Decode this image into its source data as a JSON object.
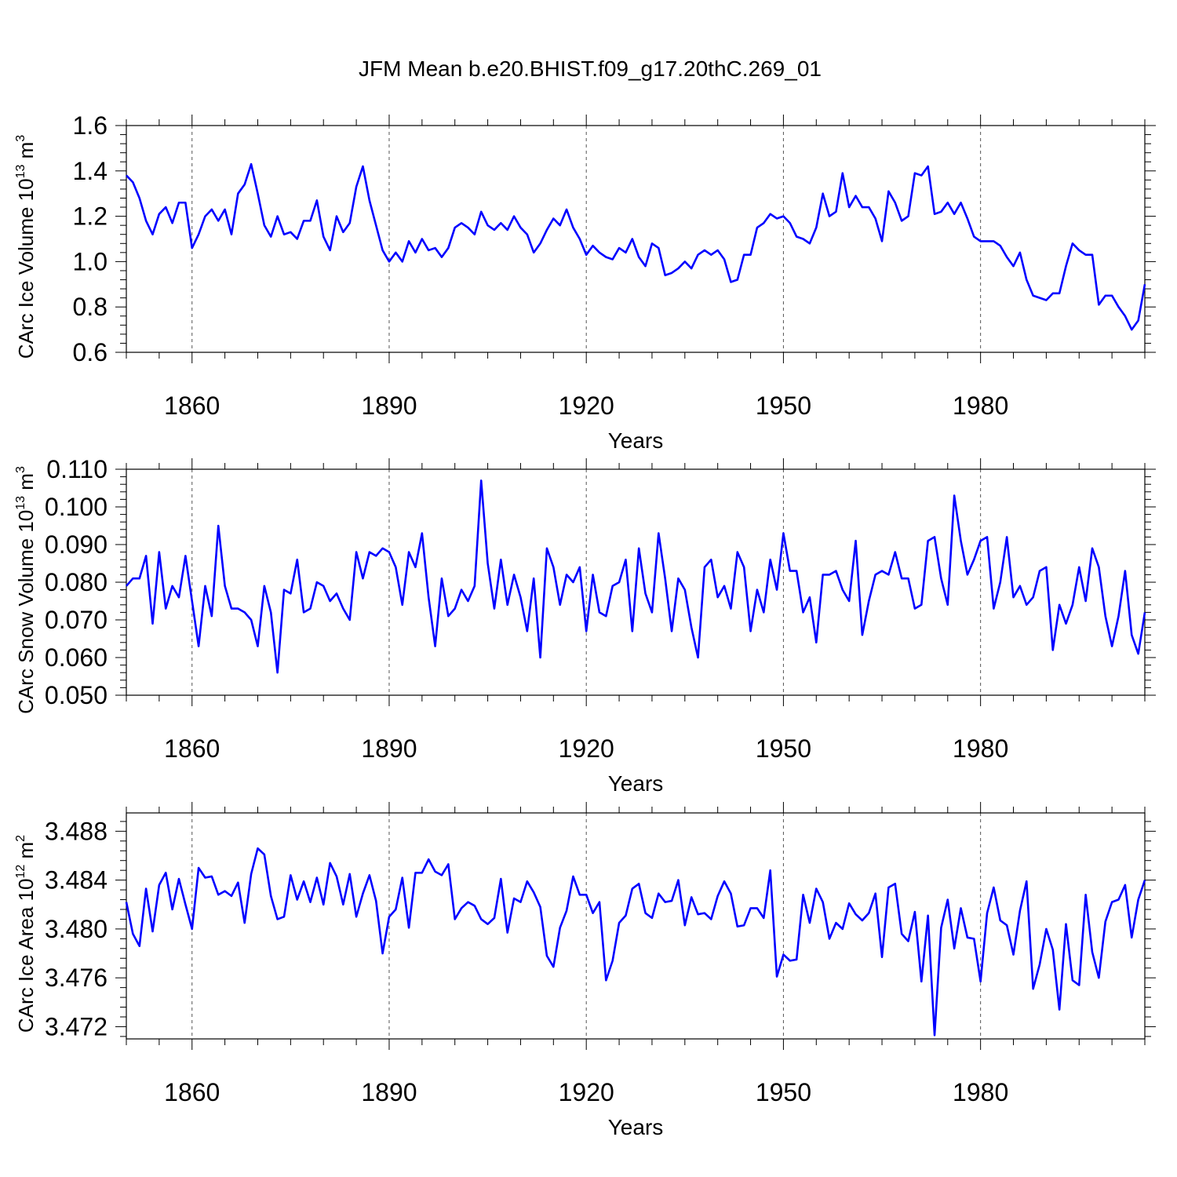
{
  "title": "JFM Mean b.e20.BHIST.f09_g17.20thC.269_01",
  "colors": {
    "line": "#0000ff",
    "axis": "#000000",
    "grid": "#555555"
  },
  "chart_data": [
    {
      "type": "line",
      "ylabel": "CArc Ice Volume 10",
      "ylabel_exp": "13",
      "ylabel_unit": " m",
      "ylabel_unit_exp": "3",
      "xlabel": "Years",
      "xlim": [
        1850,
        2005
      ],
      "ylim": [
        0.6,
        1.6
      ],
      "yticks": [
        0.6,
        0.8,
        1.0,
        1.2,
        1.4,
        1.6
      ],
      "ytick_labels": [
        "0.6",
        "0.8",
        "1.0",
        "1.2",
        "1.4",
        "1.6"
      ],
      "xticks": [
        1860,
        1890,
        1920,
        1950,
        1980
      ],
      "xtick_labels": [
        "1860",
        "1890",
        "1920",
        "1950",
        "1980"
      ],
      "x_start": 1850,
      "values": [
        1.38,
        1.35,
        1.28,
        1.18,
        1.12,
        1.21,
        1.24,
        1.17,
        1.26,
        1.26,
        1.06,
        1.12,
        1.2,
        1.23,
        1.18,
        1.23,
        1.12,
        1.3,
        1.34,
        1.43,
        1.3,
        1.16,
        1.11,
        1.2,
        1.12,
        1.13,
        1.1,
        1.18,
        1.18,
        1.27,
        1.11,
        1.05,
        1.2,
        1.13,
        1.17,
        1.33,
        1.42,
        1.27,
        1.16,
        1.05,
        1.0,
        1.04,
        1.0,
        1.09,
        1.04,
        1.1,
        1.05,
        1.06,
        1.02,
        1.06,
        1.15,
        1.17,
        1.15,
        1.12,
        1.22,
        1.16,
        1.14,
        1.17,
        1.14,
        1.2,
        1.15,
        1.12,
        1.04,
        1.08,
        1.14,
        1.19,
        1.16,
        1.23,
        1.15,
        1.1,
        1.03,
        1.07,
        1.04,
        1.02,
        1.01,
        1.06,
        1.04,
        1.1,
        1.02,
        0.98,
        1.08,
        1.06,
        0.94,
        0.95,
        0.97,
        1.0,
        0.97,
        1.03,
        1.05,
        1.03,
        1.05,
        1.01,
        0.91,
        0.92,
        1.03,
        1.03,
        1.15,
        1.17,
        1.21,
        1.19,
        1.2,
        1.17,
        1.11,
        1.1,
        1.08,
        1.15,
        1.3,
        1.2,
        1.22,
        1.39,
        1.24,
        1.29,
        1.24,
        1.24,
        1.19,
        1.09,
        1.31,
        1.26,
        1.18,
        1.2,
        1.39,
        1.38,
        1.42,
        1.21,
        1.22,
        1.26,
        1.21,
        1.26,
        1.19,
        1.11,
        1.09,
        1.09,
        1.09,
        1.07,
        1.02,
        0.98,
        1.04,
        0.92,
        0.85,
        0.84,
        0.83,
        0.86,
        0.86,
        0.98,
        1.08,
        1.05,
        1.03,
        1.03,
        0.81,
        0.85,
        0.85,
        0.8,
        0.76,
        0.7,
        0.74,
        0.9
      ]
    },
    {
      "type": "line",
      "ylabel": "CArc Snow Volume 10",
      "ylabel_exp": "13",
      "ylabel_unit": " m",
      "ylabel_unit_exp": "3",
      "xlabel": "Years",
      "xlim": [
        1850,
        2005
      ],
      "ylim": [
        0.05,
        0.11
      ],
      "yticks": [
        0.05,
        0.06,
        0.07,
        0.08,
        0.09,
        0.1,
        0.11
      ],
      "ytick_labels": [
        "0.050",
        "0.060",
        "0.070",
        "0.080",
        "0.090",
        "0.100",
        "0.110"
      ],
      "xticks": [
        1860,
        1890,
        1920,
        1950,
        1980
      ],
      "xtick_labels": [
        "1860",
        "1890",
        "1920",
        "1950",
        "1980"
      ],
      "x_start": 1850,
      "values": [
        0.079,
        0.081,
        0.081,
        0.087,
        0.069,
        0.088,
        0.073,
        0.079,
        0.076,
        0.087,
        0.075,
        0.063,
        0.079,
        0.071,
        0.095,
        0.079,
        0.073,
        0.073,
        0.072,
        0.07,
        0.063,
        0.079,
        0.072,
        0.056,
        0.078,
        0.077,
        0.086,
        0.072,
        0.073,
        0.08,
        0.079,
        0.075,
        0.077,
        0.073,
        0.07,
        0.088,
        0.081,
        0.088,
        0.087,
        0.089,
        0.088,
        0.084,
        0.074,
        0.088,
        0.084,
        0.093,
        0.076,
        0.063,
        0.081,
        0.071,
        0.073,
        0.078,
        0.075,
        0.079,
        0.107,
        0.085,
        0.073,
        0.086,
        0.074,
        0.082,
        0.076,
        0.067,
        0.081,
        0.06,
        0.089,
        0.084,
        0.074,
        0.082,
        0.08,
        0.084,
        0.067,
        0.082,
        0.072,
        0.071,
        0.079,
        0.08,
        0.086,
        0.067,
        0.089,
        0.077,
        0.072,
        0.093,
        0.081,
        0.067,
        0.081,
        0.078,
        0.068,
        0.06,
        0.084,
        0.086,
        0.076,
        0.079,
        0.073,
        0.088,
        0.084,
        0.067,
        0.078,
        0.072,
        0.086,
        0.078,
        0.093,
        0.083,
        0.083,
        0.072,
        0.076,
        0.064,
        0.082,
        0.082,
        0.083,
        0.078,
        0.075,
        0.091,
        0.066,
        0.075,
        0.082,
        0.083,
        0.082,
        0.088,
        0.081,
        0.081,
        0.073,
        0.074,
        0.091,
        0.092,
        0.081,
        0.074,
        0.103,
        0.091,
        0.082,
        0.086,
        0.091,
        0.092,
        0.073,
        0.08,
        0.092,
        0.076,
        0.079,
        0.074,
        0.076,
        0.083,
        0.084,
        0.062,
        0.074,
        0.069,
        0.074,
        0.084,
        0.075,
        0.089,
        0.084,
        0.071,
        0.063,
        0.071,
        0.083,
        0.066,
        0.061,
        0.072
      ]
    },
    {
      "type": "line",
      "ylabel": "CArc Ice Area 10",
      "ylabel_exp": "12",
      "ylabel_unit": " m",
      "ylabel_unit_exp": "2",
      "xlabel": "Years",
      "xlim": [
        1850,
        2005
      ],
      "ylim": [
        3.471,
        3.4895
      ],
      "yticks": [
        3.472,
        3.476,
        3.48,
        3.484,
        3.488
      ],
      "ytick_labels": [
        "3.472",
        "3.476",
        "3.480",
        "3.484",
        "3.488"
      ],
      "xticks": [
        1860,
        1890,
        1920,
        1950,
        1980
      ],
      "xtick_labels": [
        "1860",
        "1890",
        "1920",
        "1950",
        "1980"
      ],
      "x_start": 1850,
      "values": [
        3.4822,
        3.4796,
        3.4786,
        3.4833,
        3.4798,
        3.4836,
        3.4846,
        3.4816,
        3.4841,
        3.482,
        3.48,
        3.485,
        3.4842,
        3.4843,
        3.4828,
        3.4831,
        3.4827,
        3.4838,
        3.4805,
        3.4845,
        3.4866,
        3.4861,
        3.4827,
        3.4808,
        3.481,
        3.4844,
        3.4824,
        3.4839,
        3.4822,
        3.4842,
        3.482,
        3.4854,
        3.4843,
        3.482,
        3.4845,
        3.481,
        3.4829,
        3.4844,
        3.4823,
        3.478,
        3.481,
        3.4816,
        3.4842,
        3.4801,
        3.4846,
        3.4846,
        3.4857,
        3.4847,
        3.4844,
        3.4853,
        3.4808,
        3.4817,
        3.4822,
        3.4819,
        3.4808,
        3.4804,
        3.4809,
        3.4841,
        3.4797,
        3.4825,
        3.4822,
        3.4839,
        3.483,
        3.4818,
        3.4778,
        3.4769,
        3.4801,
        3.4815,
        3.4843,
        3.4828,
        3.4828,
        3.4813,
        3.4822,
        3.4758,
        3.4774,
        3.4805,
        3.4811,
        3.4833,
        3.4837,
        3.4813,
        3.4809,
        3.4829,
        3.4822,
        3.4823,
        3.484,
        3.4803,
        3.4826,
        3.4812,
        3.4813,
        3.4808,
        3.4827,
        3.4839,
        3.4829,
        3.4802,
        3.4803,
        3.4817,
        3.4817,
        3.4809,
        3.4848,
        3.4761,
        3.4779,
        3.4774,
        3.4775,
        3.4828,
        3.4805,
        3.4833,
        3.4822,
        3.4792,
        3.4805,
        3.48,
        3.4821,
        3.4812,
        3.4807,
        3.4813,
        3.4829,
        3.4777,
        3.4834,
        3.4837,
        3.4796,
        3.479,
        3.4814,
        3.4757,
        3.4811,
        3.4713,
        3.4801,
        3.4824,
        3.4784,
        3.4817,
        3.4793,
        3.4792,
        3.4757,
        3.4813,
        3.4834,
        3.4807,
        3.4803,
        3.4779,
        3.4815,
        3.4839,
        3.4751,
        3.4771,
        3.48,
        3.4783,
        3.4734,
        3.4804,
        3.4758,
        3.4754,
        3.4828,
        3.4781,
        3.476,
        3.4806,
        3.4822,
        3.4824,
        3.4836,
        3.4793,
        3.4824,
        3.484
      ]
    }
  ]
}
